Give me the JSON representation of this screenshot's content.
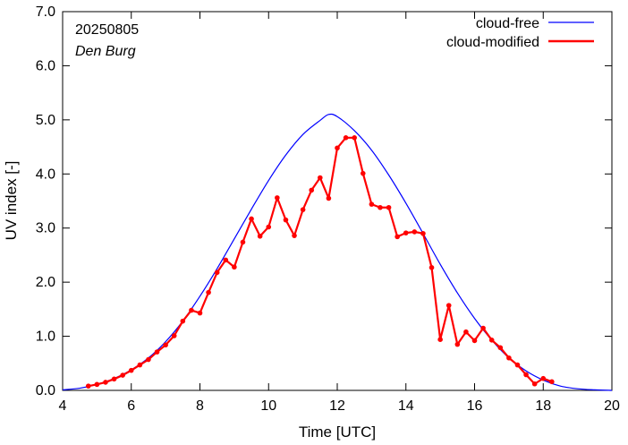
{
  "chart_data": {
    "type": "line",
    "xlabel": "Time  [UTC]",
    "ylabel": "UV index  [-]",
    "xlim": [
      4,
      20
    ],
    "ylim": [
      0,
      7
    ],
    "x_ticks": [
      4,
      6,
      8,
      10,
      12,
      14,
      16,
      18,
      20
    ],
    "y_ticks": [
      "0.0",
      "1.0",
      "2.0",
      "3.0",
      "4.0",
      "5.0",
      "6.0",
      "7.0"
    ],
    "grid": false,
    "legend_position": "top-right",
    "annotations": {
      "date": "20250805",
      "station": "Den Burg"
    },
    "series": [
      {
        "name": "cloud-free",
        "color": "#0000ff",
        "x": [
          4.0,
          4.5,
          5.0,
          5.5,
          6.0,
          6.5,
          7.0,
          7.5,
          8.0,
          8.5,
          9.0,
          9.5,
          10.0,
          10.5,
          11.0,
          11.5,
          11.75,
          12.0,
          12.5,
          13.0,
          13.5,
          14.0,
          14.5,
          15.0,
          15.5,
          16.0,
          16.5,
          17.0,
          17.5,
          18.0,
          18.5,
          19.0,
          19.5,
          20.0
        ],
        "y": [
          0.01,
          0.04,
          0.11,
          0.22,
          0.38,
          0.6,
          0.9,
          1.28,
          1.74,
          2.25,
          2.8,
          3.35,
          3.88,
          4.35,
          4.73,
          4.99,
          5.1,
          5.06,
          4.8,
          4.44,
          3.98,
          3.46,
          2.9,
          2.33,
          1.8,
          1.33,
          0.93,
          0.6,
          0.36,
          0.19,
          0.08,
          0.03,
          0.01,
          0.0
        ]
      },
      {
        "name": "cloud-modified",
        "color": "#ff0000",
        "x": [
          4.75,
          5.0,
          5.25,
          5.5,
          5.75,
          6.0,
          6.25,
          6.5,
          6.75,
          7.0,
          7.25,
          7.5,
          7.75,
          8.0,
          8.25,
          8.5,
          8.75,
          9.0,
          9.25,
          9.5,
          9.75,
          10.0,
          10.25,
          10.5,
          10.75,
          11.0,
          11.25,
          11.5,
          11.75,
          12.0,
          12.25,
          12.5,
          12.75,
          13.0,
          13.25,
          13.5,
          13.75,
          14.0,
          14.25,
          14.5,
          14.75,
          15.0,
          15.25,
          15.5,
          15.75,
          16.0,
          16.25,
          16.5,
          16.75,
          17.0,
          17.25,
          17.5,
          17.75,
          18.0,
          18.25
        ],
        "y": [
          0.08,
          0.11,
          0.15,
          0.21,
          0.28,
          0.37,
          0.47,
          0.57,
          0.71,
          0.84,
          1.01,
          1.28,
          1.48,
          1.43,
          1.81,
          2.18,
          2.41,
          2.28,
          2.74,
          3.17,
          2.85,
          3.02,
          3.56,
          3.15,
          2.86,
          3.34,
          3.7,
          3.93,
          3.55,
          4.48,
          4.67,
          4.67,
          4.01,
          3.44,
          3.38,
          3.38,
          2.84,
          2.91,
          2.93,
          2.9,
          2.27,
          0.94,
          1.57,
          0.85,
          1.08,
          0.92,
          1.15,
          0.93,
          0.79,
          0.6,
          0.47,
          0.29,
          0.12,
          0.22,
          0.16
        ]
      }
    ]
  }
}
